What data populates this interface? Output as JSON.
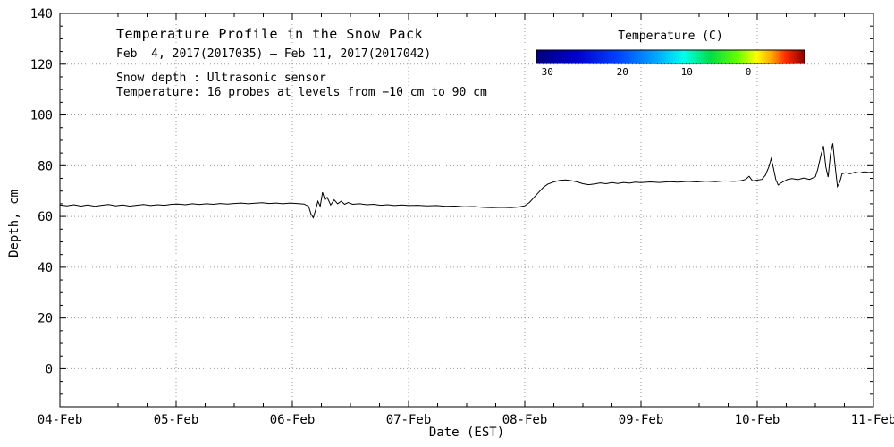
{
  "chart_data": {
    "type": "line",
    "title": "Temperature Profile in the Snow Pack",
    "subtitle": "Feb  4, 2017(2017035) – Feb 11, 2017(2017042)",
    "note_line1": "Snow depth : Ultrasonic sensor",
    "note_line2": "Temperature: 16 probes at levels from −10 cm to 90 cm",
    "xlabel": "Date (EST)",
    "ylabel": "Depth, cm",
    "x_tick_labels": [
      "04-Feb",
      "05-Feb",
      "06-Feb",
      "07-Feb",
      "08-Feb",
      "09-Feb",
      "10-Feb",
      "11-Feb"
    ],
    "x_tick_values": [
      0,
      1,
      2,
      3,
      4,
      5,
      6,
      7
    ],
    "y_tick_values": [
      0,
      20,
      40,
      60,
      80,
      100,
      120,
      140
    ],
    "xlim": [
      0,
      7
    ],
    "ylim": [
      -15,
      140
    ],
    "x_minor_step": 0.25,
    "y_minor_step": 5,
    "grid": true,
    "grid_style": "dotted",
    "line_color": "#000000",
    "series": [
      {
        "name": "Snow depth (cm), ultrasonic sensor",
        "points": [
          [
            0.0,
            64.5
          ],
          [
            0.06,
            64.2
          ],
          [
            0.12,
            64.6
          ],
          [
            0.18,
            64.1
          ],
          [
            0.24,
            64.5
          ],
          [
            0.3,
            64.0
          ],
          [
            0.36,
            64.4
          ],
          [
            0.42,
            64.7
          ],
          [
            0.48,
            64.2
          ],
          [
            0.54,
            64.5
          ],
          [
            0.6,
            64.1
          ],
          [
            0.66,
            64.4
          ],
          [
            0.72,
            64.7
          ],
          [
            0.78,
            64.3
          ],
          [
            0.84,
            64.6
          ],
          [
            0.9,
            64.4
          ],
          [
            0.96,
            64.8
          ],
          [
            1.02,
            64.9
          ],
          [
            1.08,
            64.6
          ],
          [
            1.14,
            65.0
          ],
          [
            1.2,
            64.7
          ],
          [
            1.26,
            65.0
          ],
          [
            1.32,
            64.8
          ],
          [
            1.38,
            65.1
          ],
          [
            1.44,
            64.9
          ],
          [
            1.5,
            65.1
          ],
          [
            1.56,
            65.3
          ],
          [
            1.62,
            65.0
          ],
          [
            1.68,
            65.2
          ],
          [
            1.74,
            65.4
          ],
          [
            1.8,
            65.1
          ],
          [
            1.86,
            65.3
          ],
          [
            1.92,
            65.0
          ],
          [
            1.98,
            65.3
          ],
          [
            2.04,
            65.1
          ],
          [
            2.1,
            64.9
          ],
          [
            2.14,
            64.0
          ],
          [
            2.16,
            61.0
          ],
          [
            2.18,
            59.5
          ],
          [
            2.2,
            62.5
          ],
          [
            2.22,
            66.0
          ],
          [
            2.24,
            64.0
          ],
          [
            2.26,
            69.5
          ],
          [
            2.28,
            66.5
          ],
          [
            2.3,
            67.5
          ],
          [
            2.33,
            64.5
          ],
          [
            2.36,
            66.5
          ],
          [
            2.39,
            65.0
          ],
          [
            2.42,
            66.0
          ],
          [
            2.45,
            64.8
          ],
          [
            2.48,
            65.5
          ],
          [
            2.52,
            64.8
          ],
          [
            2.58,
            65.0
          ],
          [
            2.64,
            64.6
          ],
          [
            2.7,
            64.8
          ],
          [
            2.76,
            64.4
          ],
          [
            2.82,
            64.6
          ],
          [
            2.88,
            64.3
          ],
          [
            2.94,
            64.5
          ],
          [
            3.0,
            64.3
          ],
          [
            3.08,
            64.4
          ],
          [
            3.16,
            64.2
          ],
          [
            3.24,
            64.3
          ],
          [
            3.32,
            64.0
          ],
          [
            3.4,
            64.1
          ],
          [
            3.48,
            63.8
          ],
          [
            3.56,
            63.9
          ],
          [
            3.64,
            63.6
          ],
          [
            3.72,
            63.5
          ],
          [
            3.8,
            63.6
          ],
          [
            3.88,
            63.5
          ],
          [
            3.94,
            63.7
          ],
          [
            4.0,
            64.2
          ],
          [
            4.04,
            65.5
          ],
          [
            4.08,
            67.5
          ],
          [
            4.12,
            69.5
          ],
          [
            4.16,
            71.5
          ],
          [
            4.2,
            72.8
          ],
          [
            4.25,
            73.6
          ],
          [
            4.3,
            74.2
          ],
          [
            4.35,
            74.4
          ],
          [
            4.4,
            74.1
          ],
          [
            4.45,
            73.6
          ],
          [
            4.5,
            72.9
          ],
          [
            4.55,
            72.5
          ],
          [
            4.6,
            72.8
          ],
          [
            4.65,
            73.2
          ],
          [
            4.7,
            72.9
          ],
          [
            4.75,
            73.3
          ],
          [
            4.8,
            73.0
          ],
          [
            4.85,
            73.4
          ],
          [
            4.9,
            73.1
          ],
          [
            4.95,
            73.5
          ],
          [
            5.0,
            73.3
          ],
          [
            5.08,
            73.6
          ],
          [
            5.16,
            73.4
          ],
          [
            5.24,
            73.7
          ],
          [
            5.32,
            73.5
          ],
          [
            5.4,
            73.8
          ],
          [
            5.48,
            73.6
          ],
          [
            5.56,
            73.9
          ],
          [
            5.64,
            73.7
          ],
          [
            5.72,
            74.0
          ],
          [
            5.8,
            73.8
          ],
          [
            5.86,
            74.1
          ],
          [
            5.9,
            74.6
          ],
          [
            5.93,
            75.8
          ],
          [
            5.96,
            74.0
          ],
          [
            6.0,
            74.3
          ],
          [
            6.04,
            74.6
          ],
          [
            6.07,
            76.2
          ],
          [
            6.1,
            79.5
          ],
          [
            6.12,
            82.8
          ],
          [
            6.14,
            79.0
          ],
          [
            6.16,
            74.5
          ],
          [
            6.18,
            72.4
          ],
          [
            6.22,
            73.6
          ],
          [
            6.26,
            74.6
          ],
          [
            6.3,
            74.9
          ],
          [
            6.35,
            74.5
          ],
          [
            6.4,
            75.1
          ],
          [
            6.45,
            74.6
          ],
          [
            6.5,
            75.6
          ],
          [
            6.52,
            78.5
          ],
          [
            6.55,
            84.5
          ],
          [
            6.57,
            87.8
          ],
          [
            6.59,
            79.5
          ],
          [
            6.61,
            75.5
          ],
          [
            6.63,
            84.5
          ],
          [
            6.65,
            88.8
          ],
          [
            6.67,
            80.0
          ],
          [
            6.69,
            71.8
          ],
          [
            6.71,
            73.5
          ],
          [
            6.73,
            76.8
          ],
          [
            6.76,
            77.2
          ],
          [
            6.8,
            76.8
          ],
          [
            6.84,
            77.4
          ],
          [
            6.88,
            77.1
          ],
          [
            6.92,
            77.6
          ],
          [
            6.96,
            77.3
          ],
          [
            7.0,
            77.6
          ]
        ]
      }
    ],
    "colorbar": {
      "label": "Temperature (C)",
      "tick_labels": [
        "−30",
        "−20",
        "−10",
        "0"
      ],
      "tick_positions": [
        0.03,
        0.31,
        0.55,
        0.79
      ],
      "gradient": [
        {
          "offset": 0.0,
          "color": "#000080"
        },
        {
          "offset": 0.15,
          "color": "#0000cd"
        },
        {
          "offset": 0.3,
          "color": "#0040ff"
        },
        {
          "offset": 0.45,
          "color": "#00aaff"
        },
        {
          "offset": 0.55,
          "color": "#00ffee"
        },
        {
          "offset": 0.65,
          "color": "#00dd44"
        },
        {
          "offset": 0.75,
          "color": "#66ff00"
        },
        {
          "offset": 0.82,
          "color": "#ffff00"
        },
        {
          "offset": 0.88,
          "color": "#ffa000"
        },
        {
          "offset": 0.93,
          "color": "#ff2a00"
        },
        {
          "offset": 1.0,
          "color": "#8b0000"
        }
      ]
    }
  }
}
